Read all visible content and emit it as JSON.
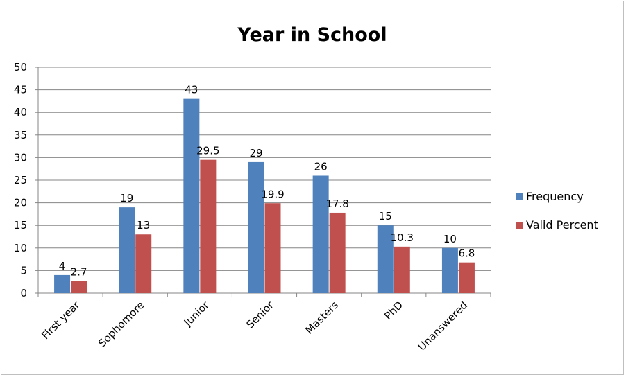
{
  "chart_data": {
    "type": "bar",
    "title": "Year in School",
    "xlabel": "",
    "ylabel": "",
    "ylim": [
      0,
      50
    ],
    "yticks": [
      0,
      5,
      10,
      15,
      20,
      25,
      30,
      35,
      40,
      45,
      50
    ],
    "grid": true,
    "legend_position": "right",
    "categories": [
      "First year",
      "Sophomore",
      "Junior",
      "Senior",
      "Masters",
      "PhD",
      "Unanswered"
    ],
    "series": [
      {
        "name": "Frequency",
        "color": "#4f81bd",
        "values": [
          4,
          19,
          43,
          29,
          26,
          15,
          10
        ],
        "labels": [
          "4",
          "19",
          "43",
          "29",
          "26",
          "15",
          "10"
        ]
      },
      {
        "name": "Valid Percent",
        "color": "#c0504d",
        "values": [
          2.7,
          13,
          29.5,
          19.9,
          17.8,
          10.3,
          6.8
        ],
        "labels": [
          "2.7",
          "13",
          "29.5",
          "19.9",
          "17.8",
          "10.3",
          "6.8"
        ]
      }
    ]
  }
}
